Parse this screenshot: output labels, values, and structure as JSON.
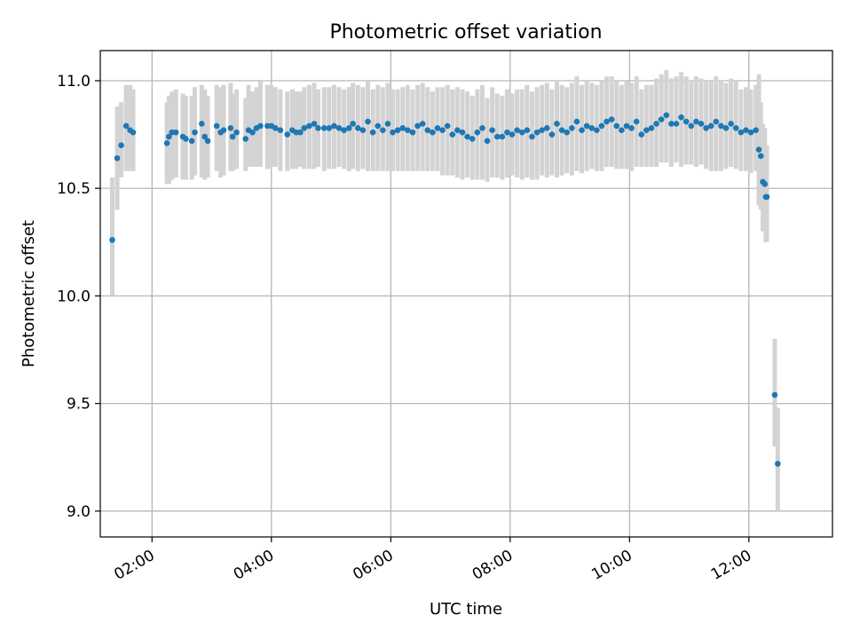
{
  "chart_data": {
    "type": "scatter",
    "title": "Photometric offset variation",
    "xlabel": "UTC time",
    "ylabel": "Photometric offset",
    "x_axis": {
      "kind": "time",
      "range": [
        "01:08",
        "13:24"
      ],
      "ticks": [
        "02:00",
        "04:00",
        "06:00",
        "08:00",
        "10:00",
        "12:00"
      ],
      "tick_label_rotation": "30deg"
    },
    "y_axis": {
      "range": [
        8.88,
        11.14
      ],
      "ticks": [
        9.0,
        9.5,
        10.0,
        10.5,
        11.0
      ],
      "tick_labels": [
        "9.0",
        "9.5",
        "10.0",
        "10.5",
        "11.0"
      ]
    },
    "grid": true,
    "colors": {
      "point": "#1f77b4",
      "errorbar": "#d3d3d3",
      "grid": "#b0b0b0"
    },
    "series": [
      {
        "x": [
          "01:20",
          "01:25",
          "01:29",
          "01:34",
          "01:38",
          "01:41",
          "02:15",
          "02:17",
          "02:20",
          "02:24",
          "02:31",
          "02:34",
          "02:40",
          "02:43",
          "02:50",
          "02:53",
          "02:56",
          "03:05",
          "03:09",
          "03:12",
          "03:19",
          "03:21",
          "03:25",
          "03:34",
          "03:37",
          "03:41",
          "03:45",
          "03:49",
          "03:56",
          "04:00",
          "04:04",
          "04:09",
          "04:16",
          "04:21",
          "04:25",
          "04:29",
          "04:33",
          "04:38",
          "04:43",
          "04:47",
          "04:53",
          "04:58",
          "05:03",
          "05:08",
          "05:13",
          "05:18",
          "05:22",
          "05:27",
          "05:32",
          "05:37",
          "05:42",
          "05:47",
          "05:52",
          "05:57",
          "06:02",
          "06:07",
          "06:12",
          "06:17",
          "06:22",
          "06:27",
          "06:32",
          "06:37",
          "06:42",
          "06:47",
          "06:52",
          "06:57",
          "07:02",
          "07:07",
          "07:12",
          "07:17",
          "07:22",
          "07:27",
          "07:32",
          "07:37",
          "07:42",
          "07:47",
          "07:52",
          "07:57",
          "08:02",
          "08:07",
          "08:12",
          "08:17",
          "08:22",
          "08:27",
          "08:32",
          "08:37",
          "08:42",
          "08:47",
          "08:52",
          "08:57",
          "09:02",
          "09:07",
          "09:12",
          "09:17",
          "09:22",
          "09:27",
          "09:32",
          "09:37",
          "09:42",
          "09:47",
          "09:52",
          "09:57",
          "10:02",
          "10:07",
          "10:12",
          "10:17",
          "10:22",
          "10:27",
          "10:32",
          "10:37",
          "10:42",
          "10:47",
          "10:52",
          "10:57",
          "11:02",
          "11:07",
          "11:12",
          "11:17",
          "11:22",
          "11:27",
          "11:32",
          "11:37",
          "11:42",
          "11:47",
          "11:52",
          "11:57",
          "12:02",
          "12:07",
          "12:10",
          "12:12",
          "12:14",
          "12:16",
          "12:17",
          "12:18",
          "12:26",
          "12:29"
        ],
        "y": [
          10.26,
          10.64,
          10.7,
          10.79,
          10.77,
          10.76,
          10.71,
          10.74,
          10.76,
          10.76,
          10.74,
          10.73,
          10.72,
          10.76,
          10.8,
          10.74,
          10.72,
          10.79,
          10.76,
          10.77,
          10.78,
          10.74,
          10.76,
          10.73,
          10.77,
          10.76,
          10.78,
          10.79,
          10.79,
          10.79,
          10.78,
          10.77,
          10.75,
          10.77,
          10.76,
          10.76,
          10.78,
          10.79,
          10.8,
          10.78,
          10.78,
          10.78,
          10.79,
          10.78,
          10.77,
          10.78,
          10.8,
          10.78,
          10.77,
          10.81,
          10.76,
          10.79,
          10.77,
          10.8,
          10.76,
          10.77,
          10.78,
          10.77,
          10.76,
          10.79,
          10.8,
          10.77,
          10.76,
          10.78,
          10.77,
          10.79,
          10.75,
          10.77,
          10.76,
          10.74,
          10.73,
          10.76,
          10.78,
          10.72,
          10.77,
          10.74,
          10.74,
          10.76,
          10.75,
          10.77,
          10.76,
          10.77,
          10.74,
          10.76,
          10.77,
          10.78,
          10.75,
          10.8,
          10.77,
          10.76,
          10.78,
          10.81,
          10.77,
          10.79,
          10.78,
          10.77,
          10.79,
          10.81,
          10.82,
          10.79,
          10.77,
          10.79,
          10.78,
          10.81,
          10.75,
          10.77,
          10.78,
          10.8,
          10.82,
          10.84,
          10.8,
          10.8,
          10.83,
          10.81,
          10.79,
          10.81,
          10.8,
          10.78,
          10.79,
          10.81,
          10.79,
          10.78,
          10.8,
          10.78,
          10.76,
          10.77,
          10.76,
          10.77,
          10.68,
          10.65,
          10.53,
          10.52,
          10.46,
          10.46,
          9.54,
          9.22
        ],
        "yerr_low": [
          10.0,
          10.4,
          10.55,
          10.58,
          10.58,
          10.58,
          10.52,
          10.52,
          10.54,
          10.55,
          10.54,
          10.54,
          10.54,
          10.56,
          10.55,
          10.54,
          10.55,
          10.58,
          10.55,
          10.56,
          10.58,
          10.58,
          10.59,
          10.58,
          10.6,
          10.6,
          10.6,
          10.6,
          10.59,
          10.6,
          10.6,
          10.58,
          10.58,
          10.59,
          10.59,
          10.6,
          10.59,
          10.59,
          10.59,
          10.6,
          10.58,
          10.59,
          10.59,
          10.6,
          10.59,
          10.58,
          10.59,
          10.58,
          10.59,
          10.58,
          10.58,
          10.58,
          10.58,
          10.58,
          10.58,
          10.58,
          10.58,
          10.58,
          10.58,
          10.58,
          10.58,
          10.58,
          10.58,
          10.58,
          10.56,
          10.56,
          10.56,
          10.55,
          10.54,
          10.55,
          10.54,
          10.54,
          10.54,
          10.53,
          10.55,
          10.55,
          10.54,
          10.55,
          10.56,
          10.55,
          10.54,
          10.55,
          10.54,
          10.54,
          10.56,
          10.55,
          10.56,
          10.55,
          10.56,
          10.57,
          10.56,
          10.58,
          10.57,
          10.58,
          10.59,
          10.58,
          10.58,
          10.6,
          10.6,
          10.59,
          10.59,
          10.59,
          10.58,
          10.6,
          10.6,
          10.6,
          10.6,
          10.6,
          10.62,
          10.62,
          10.6,
          10.62,
          10.6,
          10.61,
          10.61,
          10.6,
          10.61,
          10.59,
          10.58,
          10.58,
          10.58,
          10.59,
          10.6,
          10.59,
          10.58,
          10.58,
          10.57,
          10.58,
          10.42,
          10.4,
          10.3,
          10.3,
          10.25,
          10.25,
          9.3,
          9.0
        ],
        "yerr_high": [
          10.55,
          10.88,
          10.9,
          10.98,
          10.98,
          10.96,
          10.9,
          10.93,
          10.95,
          10.96,
          10.94,
          10.93,
          10.93,
          10.97,
          10.98,
          10.96,
          10.93,
          10.98,
          10.97,
          10.98,
          10.99,
          10.94,
          10.96,
          10.92,
          10.98,
          10.95,
          10.97,
          11.0,
          10.98,
          10.98,
          10.97,
          10.96,
          10.95,
          10.96,
          10.95,
          10.95,
          10.97,
          10.98,
          10.99,
          10.96,
          10.97,
          10.97,
          10.98,
          10.97,
          10.96,
          10.97,
          10.99,
          10.98,
          10.97,
          11.0,
          10.96,
          10.98,
          10.97,
          10.99,
          10.96,
          10.96,
          10.97,
          10.98,
          10.96,
          10.98,
          10.99,
          10.97,
          10.95,
          10.97,
          10.97,
          10.98,
          10.96,
          10.97,
          10.96,
          10.95,
          10.93,
          10.96,
          10.98,
          10.92,
          10.97,
          10.94,
          10.93,
          10.96,
          10.94,
          10.96,
          10.96,
          10.98,
          10.95,
          10.97,
          10.98,
          10.99,
          10.96,
          11.0,
          10.98,
          10.97,
          10.99,
          11.02,
          10.98,
          11.0,
          10.99,
          10.98,
          11.0,
          11.02,
          11.02,
          11.0,
          10.98,
          11.0,
          10.99,
          11.02,
          10.96,
          10.98,
          10.98,
          11.01,
          11.03,
          11.05,
          11.01,
          11.02,
          11.04,
          11.02,
          11.0,
          11.02,
          11.01,
          11.0,
          11.0,
          11.02,
          11.0,
          10.99,
          11.01,
          11.0,
          10.96,
          10.97,
          10.96,
          10.98,
          11.03,
          10.9,
          10.8,
          10.78,
          10.7,
          10.7,
          9.8,
          9.48
        ]
      }
    ]
  }
}
